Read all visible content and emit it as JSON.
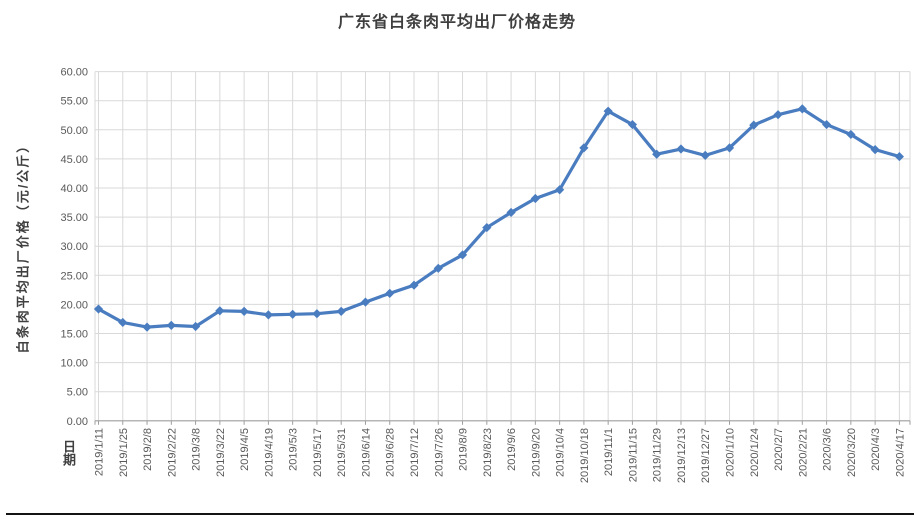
{
  "chart_data": {
    "type": "line",
    "title": "广东省白条肉平均出厂价格走势",
    "xlabel": "日期",
    "ylabel": "白条肉平均出厂价格（元/公斤）",
    "categories": [
      "2019/1/11",
      "2019/1/25",
      "2019/2/8",
      "2019/2/22",
      "2019/3/8",
      "2019/3/22",
      "2019/4/5",
      "2019/4/19",
      "2019/5/3",
      "2019/5/17",
      "2019/5/31",
      "2019/6/14",
      "2019/6/28",
      "2019/7/12",
      "2019/7/26",
      "2019/8/9",
      "2019/8/23",
      "2019/9/6",
      "2019/9/20",
      "2019/10/4",
      "2019/10/18",
      "2019/11/1",
      "2019/11/15",
      "2019/11/29",
      "2019/12/13",
      "2019/12/27",
      "2020/1/10",
      "2020/1/24",
      "2020/2/7",
      "2020/2/21",
      "2020/3/6",
      "2020/3/20",
      "2020/4/3",
      "2020/4/17"
    ],
    "values": [
      19.2,
      16.9,
      16.1,
      16.4,
      16.2,
      18.9,
      18.8,
      18.2,
      18.3,
      18.4,
      18.8,
      20.4,
      21.9,
      23.3,
      26.2,
      28.5,
      33.2,
      35.8,
      38.2,
      39.7,
      46.9,
      53.2,
      50.9,
      45.8,
      46.7,
      45.6,
      46.9,
      50.8,
      52.6,
      53.6,
      50.9,
      49.2,
      46.6,
      45.4
    ],
    "ylim": [
      0,
      60
    ],
    "yticks": [
      0,
      5,
      10,
      15,
      20,
      25,
      30,
      35,
      40,
      45,
      50,
      55,
      60
    ],
    "ytick_labels": [
      "0.00",
      "5.00",
      "10.00",
      "15.00",
      "20.00",
      "25.00",
      "30.00",
      "35.00",
      "40.00",
      "45.00",
      "50.00",
      "55.00",
      "60.00"
    ],
    "grid": "both",
    "legend": "none",
    "marker": "diamond",
    "colors": {
      "line": "#4a7cc0",
      "gridline": "#d9d9d9",
      "axis": "#9e9e9e",
      "tick_label": "#595959",
      "title": "#3f3f3f"
    }
  }
}
